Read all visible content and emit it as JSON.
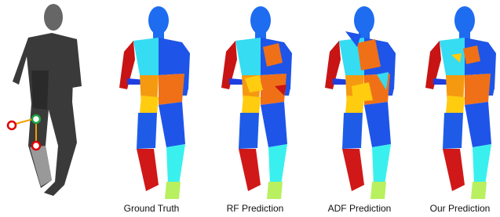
{
  "captions": [
    "Ground Truth",
    "RF Prediction",
    "ADF Prediction",
    "Our Prediction"
  ]
}
